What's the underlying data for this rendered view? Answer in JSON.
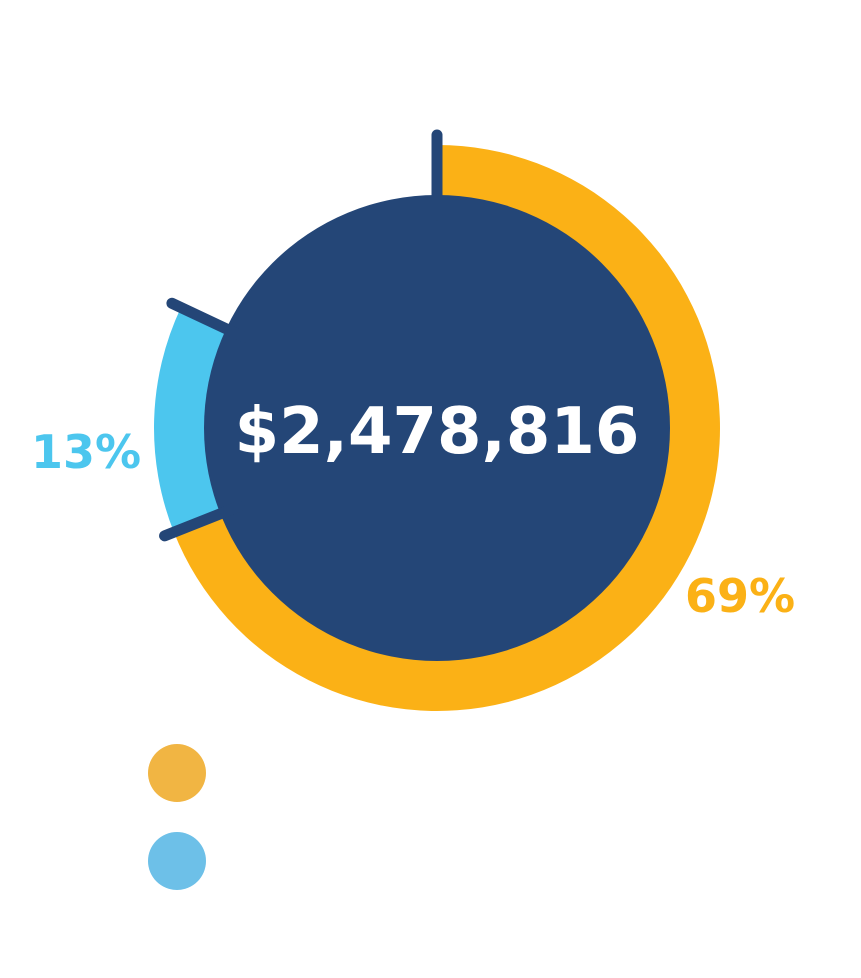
{
  "chart_data": {
    "type": "pie",
    "style": "donut",
    "center_value": "$2,478,816",
    "slices": [
      {
        "label": "69%",
        "value": 69,
        "color": "#FBB116"
      },
      {
        "label": "13%",
        "value": 13,
        "color": "#4CC6EE"
      }
    ],
    "legend": {
      "placement": "bottom-left",
      "entries": [
        {
          "name": "",
          "color": "#F1B543"
        },
        {
          "name": "",
          "color": "#6DC0E8"
        }
      ]
    },
    "center_color": "#244677",
    "divider_color": "#244677"
  }
}
